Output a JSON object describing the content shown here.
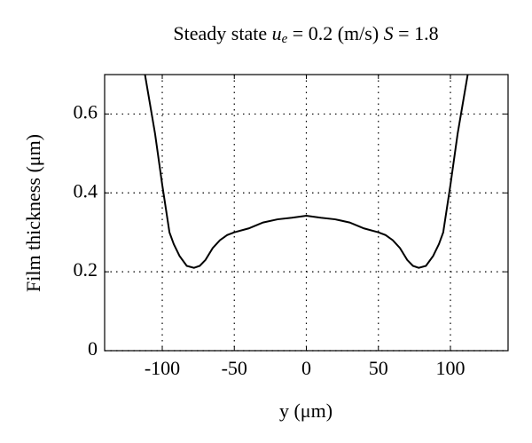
{
  "chart_data": {
    "type": "line",
    "title": [
      "Steady state ",
      "u",
      "e",
      " = 0.2 (m/s) ",
      "S",
      " = 1.8"
    ],
    "xlabel": "y (μm)",
    "ylabel": "Film thickness (μm)",
    "series": [
      {
        "color": "#000000",
        "x": [
          -112,
          -105,
          -100,
          -95,
          -92,
          -88,
          -83,
          -78,
          -74,
          -70,
          -65,
          -60,
          -55,
          -50,
          -40,
          -30,
          -20,
          -10,
          0,
          10,
          20,
          30,
          40,
          50,
          55,
          60,
          65,
          70,
          74,
          78,
          83,
          88,
          92,
          95,
          100,
          105,
          112
        ],
        "values": [
          0.7,
          0.55,
          0.42,
          0.3,
          0.27,
          0.24,
          0.215,
          0.21,
          0.215,
          0.23,
          0.26,
          0.28,
          0.293,
          0.3,
          0.31,
          0.325,
          0.333,
          0.337,
          0.342,
          0.337,
          0.333,
          0.325,
          0.31,
          0.3,
          0.293,
          0.28,
          0.26,
          0.23,
          0.215,
          0.21,
          0.215,
          0.24,
          0.27,
          0.3,
          0.42,
          0.55,
          0.7
        ]
      }
    ],
    "xlim": [
      -140,
      140
    ],
    "xticks": [
      -100,
      -50,
      0,
      50,
      100
    ],
    "ylim": [
      0,
      0.7
    ],
    "yticks": [
      0,
      0.2,
      0.4,
      0.6
    ],
    "grid": true
  }
}
